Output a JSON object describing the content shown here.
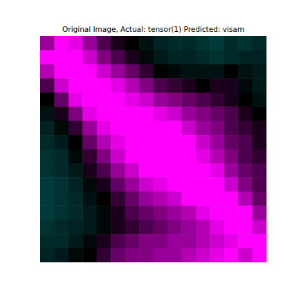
{
  "chart_data": {
    "type": "heatmap",
    "title": "Original Image, Actual: tensor(1) Predicted: visam",
    "tick_labels": false,
    "zlim": [
      -1,
      1
    ],
    "cells": [
      [
        0.6,
        1,
        0.9,
        0.6,
        0.3,
        0.1,
        0,
        -0.2,
        -0.4,
        -0.5,
        -0.5,
        -0.6,
        -0.7,
        -0.5,
        -0.6,
        -0.5
      ],
      [
        1,
        1,
        1,
        0.8,
        0.5,
        0.3,
        0.1,
        -0.1,
        -0.3,
        -0.4,
        -0.4,
        -0.5,
        -0.6,
        -0.5,
        -0.4,
        -0.4
      ],
      [
        0.7,
        1,
        1,
        1,
        0.8,
        0.6,
        0.4,
        0.2,
        0,
        -0.1,
        -0.2,
        -0.2,
        -0.2,
        0,
        -0.2,
        -0.3
      ],
      [
        0.3,
        0.8,
        1,
        1,
        1,
        0.9,
        0.7,
        0.5,
        0.3,
        0.2,
        0.1,
        0,
        0.1,
        0.1,
        -0.1,
        -0.3
      ],
      [
        0,
        0.4,
        0.9,
        1,
        1,
        1,
        0.9,
        0.8,
        0.6,
        0.5,
        0.4,
        0.3,
        0.2,
        0.1,
        0,
        -0.2
      ],
      [
        -0.2,
        0.1,
        0.5,
        0.9,
        1,
        1,
        1,
        1,
        0.9,
        0.8,
        0.6,
        0.5,
        0.4,
        0.3,
        0.1,
        0
      ],
      [
        -0.4,
        -0.1,
        0.2,
        0.6,
        0.9,
        1,
        1,
        1,
        1,
        1,
        0.8,
        0.6,
        0.5,
        0.3,
        0.2,
        0.1
      ],
      [
        -0.5,
        -0.3,
        0,
        0.4,
        0.7,
        0.9,
        1,
        1,
        1,
        1,
        1,
        0.8,
        0.6,
        0.4,
        0.3,
        0.1
      ],
      [
        -0.6,
        -0.5,
        -0.1,
        0.2,
        0.5,
        0.8,
        1,
        1,
        1,
        1,
        1,
        0.9,
        0.7,
        0.5,
        0.3,
        0.2
      ],
      [
        -0.6,
        -0.5,
        -0.3,
        0.1,
        0.3,
        0.6,
        0.8,
        1,
        1,
        1,
        1,
        1,
        0.9,
        0.6,
        0.4,
        0.3
      ],
      [
        -0.7,
        -0.6,
        -0.4,
        -0.1,
        0.1,
        0.4,
        0.6,
        0.8,
        0.9,
        1,
        1,
        1,
        1,
        0.8,
        0.5,
        0.3
      ],
      [
        -0.7,
        -0.6,
        -0.5,
        -0.2,
        0,
        0.2,
        0.4,
        0.6,
        0.7,
        0.8,
        1,
        1,
        1,
        1,
        0.7,
        0.4
      ],
      [
        -0.7,
        -0.6,
        -0.5,
        -0.3,
        -0.1,
        0.1,
        0.3,
        0.4,
        0.5,
        0.6,
        0.7,
        0.9,
        1,
        1,
        1,
        0.6
      ],
      [
        -0.6,
        -0.5,
        -0.4,
        -0.3,
        -0.1,
        0.1,
        0.2,
        0.3,
        0.4,
        0.5,
        0.6,
        0.7,
        0.9,
        1,
        1,
        0.8
      ],
      [
        -0.5,
        -0.5,
        -0.3,
        -0.1,
        0.1,
        0.3,
        0.4,
        0.5,
        0.5,
        0.6,
        0.6,
        0.7,
        0.8,
        0.9,
        1,
        1
      ],
      [
        -0.4,
        -0.3,
        -0.1,
        0,
        0.2,
        0.4,
        0.5,
        0.5,
        0.6,
        0.6,
        0.7,
        0.8,
        0.9,
        1,
        0.8,
        1
      ]
    ]
  }
}
